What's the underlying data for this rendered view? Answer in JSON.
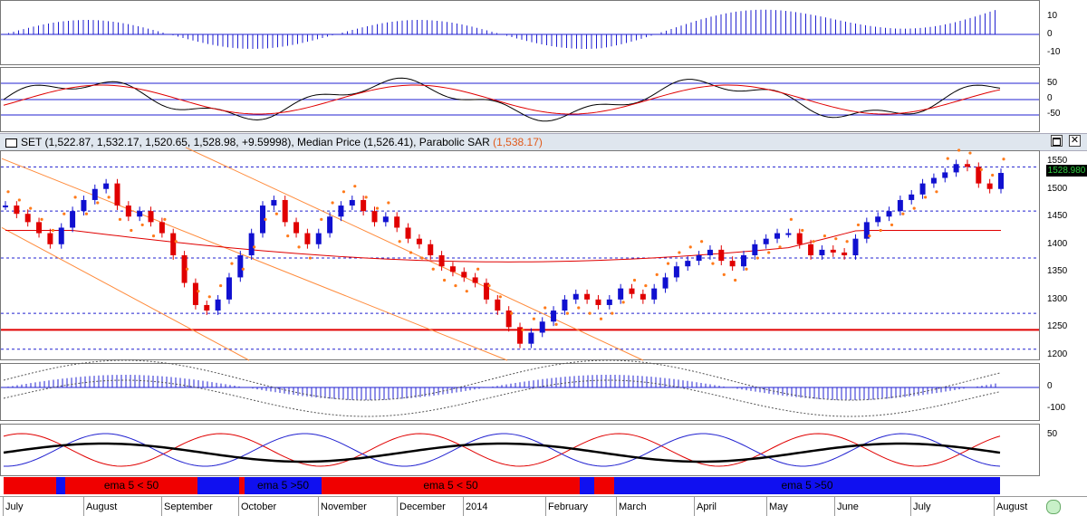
{
  "header": {
    "ohlc_text": "SET (1,522.87, 1,532.17, 1,520.65, 1,528.98, +9.59998)",
    "median_text": ", Median Price (1,526.41)",
    "sar_label": ", Parabolic SAR ",
    "sar_value": "(1,538.17)",
    "maximize_icon": "maximize-icon",
    "close_icon": "close-icon",
    "close_glyph": "✕"
  },
  "last_price": "1528.980",
  "panels": {
    "macd_top_ticks": [
      "10",
      "0",
      "-10"
    ],
    "stoch_ticks": [
      "50",
      "0",
      "-50"
    ],
    "price_ticks": [
      "1550",
      "1500",
      "1450",
      "1400",
      "1350",
      "1300",
      "1250",
      "1200"
    ],
    "macd_bottom_ticks": [
      "0",
      "-100"
    ],
    "rsi_ticks": [
      "50"
    ]
  },
  "bands": [
    {
      "label": "",
      "color": "#f00000"
    },
    {
      "label": "",
      "color": "#1010f0"
    },
    {
      "label": "ema 5 < 50",
      "color": "#f00000"
    },
    {
      "label": "",
      "color": "#1010f0"
    },
    {
      "label": "",
      "color": "#f00000"
    },
    {
      "label": "ema 5 >50",
      "color": "#1010f0"
    },
    {
      "label": "ema 5 < 50",
      "color": "#f00000"
    },
    {
      "label": "",
      "color": "#1010f0"
    },
    {
      "label": "",
      "color": "#f00000"
    },
    {
      "label": "ema 5 >50",
      "color": "#1010f0"
    }
  ],
  "months": [
    "July",
    "August",
    "September",
    "October",
    "November",
    "December",
    "2014",
    "February",
    "March",
    "April",
    "May",
    "June",
    "July",
    "August"
  ],
  "colors": {
    "up": "#1010d0",
    "down": "#e00000",
    "sar": "#ff7a1a",
    "macd": "#2020d0",
    "grid": "#2020d0",
    "support": "#e00000"
  },
  "chart_data": {
    "type": "line",
    "title": "SET",
    "ylim": [
      1190,
      1570
    ],
    "horizontal_levels": [
      1540,
      1460,
      1375,
      1275,
      1245,
      1210
    ],
    "series": [
      {
        "name": "SET",
        "values": [
          1470,
          1455,
          1440,
          1420,
          1400,
          1430,
          1460,
          1480,
          1500,
          1510,
          1470,
          1450,
          1460,
          1440,
          1420,
          1380,
          1330,
          1290,
          1280,
          1300,
          1340,
          1380,
          1420,
          1470,
          1480,
          1440,
          1420,
          1400,
          1420,
          1450,
          1470,
          1480,
          1460,
          1440,
          1450,
          1430,
          1410,
          1400,
          1380,
          1360,
          1350,
          1340,
          1330,
          1300,
          1280,
          1250,
          1220,
          1240,
          1260,
          1280,
          1300,
          1310,
          1300,
          1290,
          1300,
          1320,
          1310,
          1300,
          1320,
          1340,
          1360,
          1370,
          1380,
          1390,
          1370,
          1360,
          1380,
          1400,
          1410,
          1420,
          1420,
          1400,
          1380,
          1390,
          1385,
          1380,
          1410,
          1440,
          1450,
          1460,
          1480,
          1490,
          1510,
          1520,
          1530,
          1545,
          1540,
          1510,
          1500,
          1529
        ]
      }
    ]
  }
}
